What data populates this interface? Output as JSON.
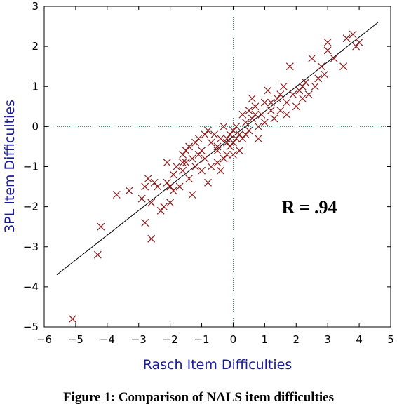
{
  "chart_data": {
    "type": "scatter",
    "xlabel": "Rasch Item Difficulties",
    "ylabel": "3PL Item Difficulties",
    "xlim": [
      -6,
      5
    ],
    "ylim": [
      -5,
      3
    ],
    "xticks": [
      -6,
      -5,
      -4,
      -3,
      -2,
      -1,
      0,
      1,
      2,
      3,
      4,
      5
    ],
    "yticks": [
      -5,
      -4,
      -3,
      -2,
      -1,
      0,
      1,
      2,
      3
    ],
    "annotation": "R = .94",
    "grid": false,
    "reference_lines": {
      "x": 0,
      "y": 0
    },
    "fit_line": {
      "from": [
        -5.6,
        -3.7
      ],
      "to": [
        4.6,
        2.6
      ]
    },
    "colors": {
      "points": "#8b1a1a",
      "axis_labels": "#1a1a9c",
      "reference": "#2a8a6a",
      "fit": "#000000"
    },
    "marker": "x",
    "points": [
      [
        -5.1,
        -4.8
      ],
      [
        -4.3,
        -3.2
      ],
      [
        -4.2,
        -2.5
      ],
      [
        -3.7,
        -1.7
      ],
      [
        -3.3,
        -1.6
      ],
      [
        -2.9,
        -1.8
      ],
      [
        -2.8,
        -2.4
      ],
      [
        -2.8,
        -1.5
      ],
      [
        -2.7,
        -1.3
      ],
      [
        -2.6,
        -2.8
      ],
      [
        -2.6,
        -1.9
      ],
      [
        -2.5,
        -1.4
      ],
      [
        -2.3,
        -2.1
      ],
      [
        -2.2,
        -2.0
      ],
      [
        -2.1,
        -1.4
      ],
      [
        -2.1,
        -0.9
      ],
      [
        -2.0,
        -1.5
      ],
      [
        -2.0,
        -1.9
      ],
      [
        -1.9,
        -1.2
      ],
      [
        -1.8,
        -1.0
      ],
      [
        -1.7,
        -1.5
      ],
      [
        -1.6,
        -0.7
      ],
      [
        -1.6,
        -1.1
      ],
      [
        -1.5,
        -0.9
      ],
      [
        -1.5,
        -0.6
      ],
      [
        -1.4,
        -1.3
      ],
      [
        -1.4,
        -0.5
      ],
      [
        -1.3,
        -0.8
      ],
      [
        -1.3,
        -1.7
      ],
      [
        -1.2,
        -0.4
      ],
      [
        -1.2,
        -1.0
      ],
      [
        -1.1,
        -0.7
      ],
      [
        -1.1,
        -0.3
      ],
      [
        -1.0,
        -0.6
      ],
      [
        -1.0,
        -1.1
      ],
      [
        -0.9,
        -0.2
      ],
      [
        -0.9,
        -0.8
      ],
      [
        -0.8,
        -0.1
      ],
      [
        -0.8,
        -1.4
      ],
      [
        -0.7,
        -0.4
      ],
      [
        -0.7,
        -1.0
      ],
      [
        -0.6,
        -0.2
      ],
      [
        -0.5,
        -0.5
      ],
      [
        -0.5,
        -0.9
      ],
      [
        -0.4,
        -0.3
      ],
      [
        -0.4,
        -1.1
      ],
      [
        -0.3,
        -0.8
      ],
      [
        -0.3,
        0.0
      ],
      [
        -0.2,
        -0.4
      ],
      [
        -0.2,
        -0.7
      ],
      [
        -0.1,
        -0.2
      ],
      [
        -0.1,
        -0.5
      ],
      [
        0.0,
        -0.1
      ],
      [
        0.0,
        -0.4
      ],
      [
        0.0,
        -0.7
      ],
      [
        0.1,
        -0.3
      ],
      [
        0.1,
        0.0
      ],
      [
        0.2,
        -0.6
      ],
      [
        0.2,
        -0.2
      ],
      [
        0.3,
        0.3
      ],
      [
        0.3,
        -0.3
      ],
      [
        0.4,
        0.1
      ],
      [
        0.5,
        0.4
      ],
      [
        0.5,
        -0.1
      ],
      [
        0.6,
        0.7
      ],
      [
        0.6,
        0.2
      ],
      [
        0.7,
        0.5
      ],
      [
        0.8,
        0.0
      ],
      [
        0.8,
        -0.3
      ],
      [
        0.9,
        0.3
      ],
      [
        1.0,
        0.6
      ],
      [
        1.0,
        0.1
      ],
      [
        1.1,
        0.9
      ],
      [
        1.2,
        0.4
      ],
      [
        1.3,
        0.2
      ],
      [
        1.4,
        0.7
      ],
      [
        1.5,
        0.4
      ],
      [
        1.6,
        1.0
      ],
      [
        1.7,
        0.6
      ],
      [
        1.7,
        0.3
      ],
      [
        1.8,
        1.5
      ],
      [
        1.9,
        0.8
      ],
      [
        2.0,
        0.5
      ],
      [
        2.1,
        0.9
      ],
      [
        2.2,
        0.7
      ],
      [
        2.3,
        1.1
      ],
      [
        2.4,
        0.8
      ],
      [
        2.5,
        1.7
      ],
      [
        2.6,
        1.0
      ],
      [
        2.7,
        1.2
      ],
      [
        2.8,
        1.5
      ],
      [
        2.9,
        1.3
      ],
      [
        3.0,
        1.9
      ],
      [
        3.0,
        2.1
      ],
      [
        3.2,
        1.7
      ],
      [
        3.5,
        1.5
      ],
      [
        3.6,
        2.2
      ],
      [
        3.8,
        2.3
      ],
      [
        3.9,
        2.0
      ],
      [
        4.0,
        2.1
      ],
      [
        -0.5,
        -0.6
      ],
      [
        0.4,
        -0.2
      ],
      [
        1.5,
        0.8
      ],
      [
        2.2,
        1.0
      ],
      [
        -1.9,
        -1.6
      ],
      [
        -2.4,
        -1.5
      ],
      [
        -1.6,
        -0.9
      ],
      [
        -0.2,
        -0.3
      ],
      [
        0.7,
        0.3
      ],
      [
        1.2,
        0.6
      ]
    ]
  },
  "caption": "Figure 1: Comparison of NALS item difficulties"
}
